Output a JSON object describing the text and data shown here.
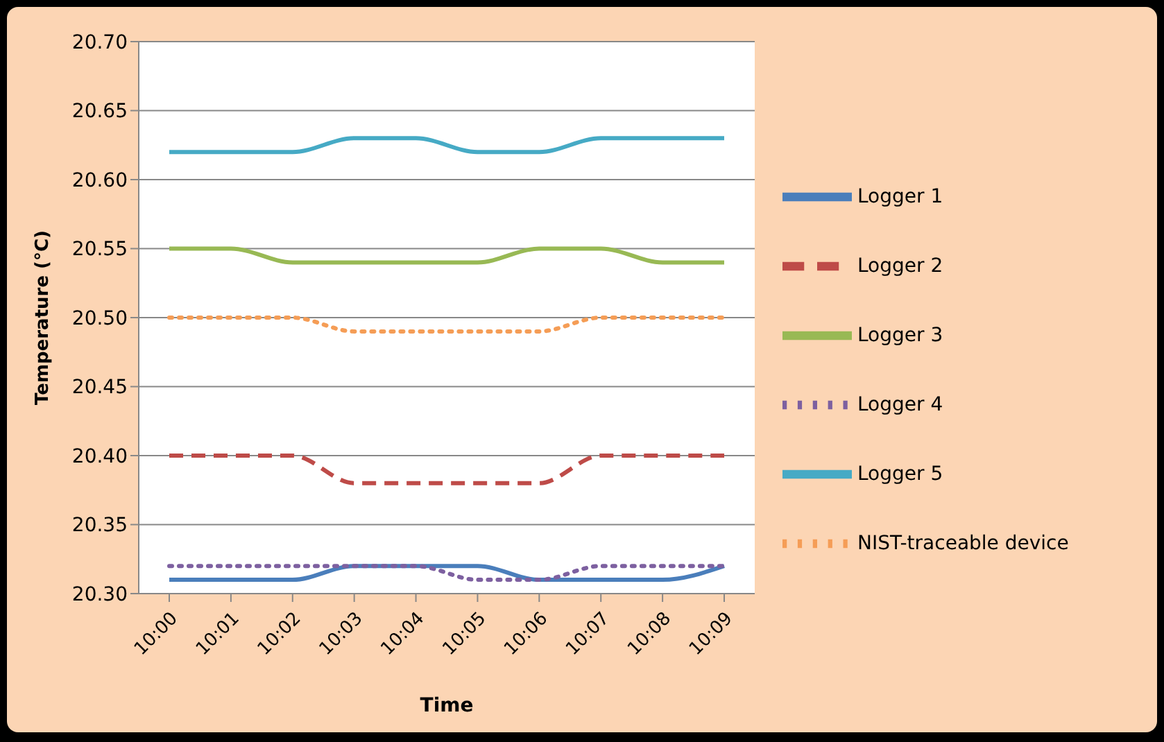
{
  "chart_data": {
    "type": "line",
    "xlabel": "Time",
    "ylabel": "Temperature (°C)",
    "categories": [
      "10:00",
      "10:01",
      "10:02",
      "10:03",
      "10:04",
      "10:05",
      "10:06",
      "10:07",
      "10:08",
      "10:09"
    ],
    "series": [
      {
        "name": "Logger 1",
        "color": "#4a7ebb",
        "line_style": "solid",
        "values": [
          20.31,
          20.31,
          20.31,
          20.32,
          20.32,
          20.32,
          20.31,
          20.31,
          20.31,
          20.32
        ]
      },
      {
        "name": "Logger 2",
        "color": "#be4b48",
        "line_style": "dashed",
        "values": [
          20.4,
          20.4,
          20.4,
          20.38,
          20.38,
          20.38,
          20.38,
          20.4,
          20.4,
          20.4
        ]
      },
      {
        "name": "Logger 3",
        "color": "#98b954",
        "line_style": "solid",
        "values": [
          20.55,
          20.55,
          20.54,
          20.54,
          20.54,
          20.54,
          20.55,
          20.55,
          20.54,
          20.54
        ]
      },
      {
        "name": "Logger 4",
        "color": "#7d60a0",
        "line_style": "dotted",
        "values": [
          20.32,
          20.32,
          20.32,
          20.32,
          20.32,
          20.31,
          20.31,
          20.32,
          20.32,
          20.32
        ]
      },
      {
        "name": "Logger 5",
        "color": "#46aac5",
        "line_style": "solid",
        "values": [
          20.62,
          20.62,
          20.62,
          20.63,
          20.63,
          20.62,
          20.62,
          20.63,
          20.63,
          20.63
        ]
      },
      {
        "name": "NIST-traceable device",
        "color": "#f59d56",
        "line_style": "dotted",
        "values": [
          20.5,
          20.5,
          20.5,
          20.49,
          20.49,
          20.49,
          20.49,
          20.5,
          20.5,
          20.5
        ]
      }
    ],
    "ylim": [
      20.3,
      20.7
    ],
    "yticks": [
      {
        "value": 20.3,
        "label": "20.30"
      },
      {
        "value": 20.35,
        "label": "20.35"
      },
      {
        "value": 20.4,
        "label": "20.40"
      },
      {
        "value": 20.45,
        "label": "20.45"
      },
      {
        "value": 20.5,
        "label": "20.50"
      },
      {
        "value": 20.55,
        "label": "20.55"
      },
      {
        "value": 20.6,
        "label": "20.60"
      },
      {
        "value": 20.65,
        "label": "20.65"
      },
      {
        "value": 20.7,
        "label": "20.70"
      }
    ],
    "grid": "y",
    "legend": "right",
    "marker": "none"
  }
}
